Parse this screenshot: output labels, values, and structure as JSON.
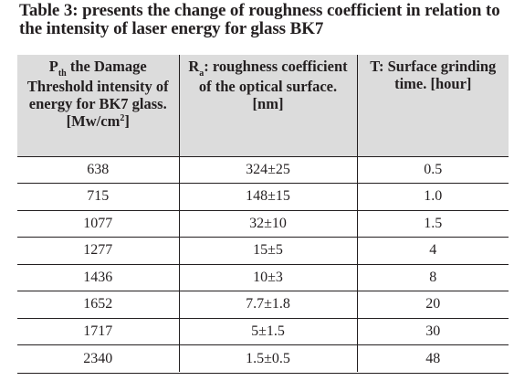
{
  "caption": {
    "label": "Table 3:",
    "text": " presents the change of roughness coefficient in relation to the intensity of laser energy for glass BK7"
  },
  "table": {
    "headers": [
      {
        "symbol": "P",
        "subscript": "th",
        "text": " the Damage Threshold intensity of energy for BK7 glass. [Mw/cm",
        "superscript": "2",
        "suffix": "]"
      },
      {
        "symbol": "R",
        "subscript": "a",
        "text": ": roughness coefficient of the optical surface. [nm]"
      },
      {
        "text": "T: Surface grinding time. [hour]"
      }
    ],
    "rows": [
      [
        "638",
        "324±25",
        "0.5"
      ],
      [
        "715",
        "148±15",
        "1.0"
      ],
      [
        "1077",
        "32±10",
        "1.5"
      ],
      [
        "1277",
        "15±5",
        "4"
      ],
      [
        "1436",
        "10±3",
        "8"
      ],
      [
        "1652",
        "7.7±1.8",
        "20"
      ],
      [
        "1717",
        "5±1.5",
        "30"
      ],
      [
        "2340",
        "1.5±0.5",
        "48"
      ]
    ]
  }
}
